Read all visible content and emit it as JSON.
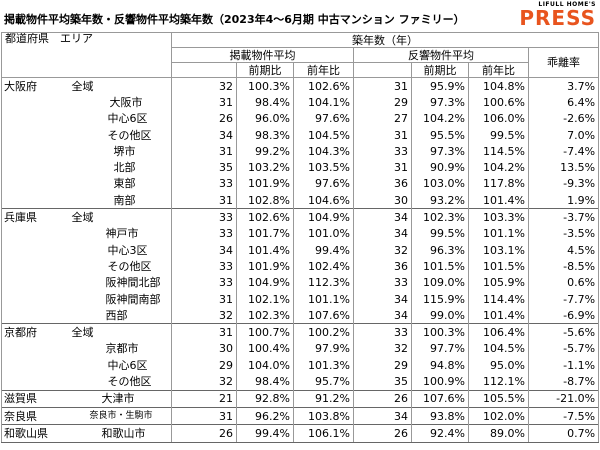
{
  "header": {
    "title": "掲載物件平均築年数・反響物件平均築年数（2023年4～6月期 中古マンション ファミリー）",
    "logo_small": "LIFULL HOME'S",
    "logo_large": "PRESS"
  },
  "table": {
    "columns": {
      "region": "都道府県　エリア",
      "years": "築年数（年）",
      "listed": "掲載物件平均",
      "inquired": "反響物件平均",
      "gap": "乖離率",
      "listed_qoq": "前期比",
      "listed_yoy": "前年比",
      "inquired_qoq": "前期比",
      "inquired_yoy": "前年比"
    },
    "rows": [
      {
        "prefecture": "大阪府",
        "area": "全域",
        "cells": [
          "32",
          "100.3%",
          "102.6%",
          "31",
          "95.9%",
          "104.8%",
          "3.7%"
        ]
      },
      {
        "area": "大阪市",
        "cells": [
          "31",
          "98.4%",
          "104.1%",
          "29",
          "97.3%",
          "100.6%",
          "6.4%"
        ]
      },
      {
        "area": "中心6区",
        "cells": [
          "26",
          "96.0%",
          "97.6%",
          "27",
          "104.2%",
          "106.0%",
          "-2.6%"
        ]
      },
      {
        "area": "その他区",
        "cells": [
          "34",
          "98.3%",
          "104.5%",
          "31",
          "95.5%",
          "99.5%",
          "7.0%"
        ]
      },
      {
        "area": "堺市",
        "cells": [
          "31",
          "99.2%",
          "104.3%",
          "33",
          "97.3%",
          "114.5%",
          "-7.4%"
        ]
      },
      {
        "area": "北部",
        "cells": [
          "35",
          "103.2%",
          "103.5%",
          "31",
          "90.9%",
          "104.2%",
          "13.5%"
        ]
      },
      {
        "area": "東部",
        "cells": [
          "33",
          "101.9%",
          "97.6%",
          "36",
          "103.0%",
          "117.8%",
          "-9.3%"
        ]
      },
      {
        "area": "南部",
        "cells": [
          "31",
          "102.8%",
          "104.6%",
          "30",
          "93.2%",
          "101.4%",
          "1.9%"
        ]
      },
      {
        "prefecture": "兵庫県",
        "area": "全域",
        "cells": [
          "33",
          "102.6%",
          "104.9%",
          "34",
          "102.3%",
          "103.3%",
          "-3.7%"
        ]
      },
      {
        "area": "神戸市",
        "cells": [
          "33",
          "101.7%",
          "101.0%",
          "34",
          "99.5%",
          "101.1%",
          "-3.5%"
        ]
      },
      {
        "area": "中心3区",
        "cells": [
          "34",
          "101.4%",
          "99.4%",
          "32",
          "96.3%",
          "103.1%",
          "4.5%"
        ]
      },
      {
        "area": "その他区",
        "cells": [
          "33",
          "101.9%",
          "102.4%",
          "36",
          "101.5%",
          "101.5%",
          "-8.5%"
        ]
      },
      {
        "area": "阪神間北部",
        "cells": [
          "33",
          "104.9%",
          "112.3%",
          "33",
          "109.0%",
          "105.9%",
          "0.6%"
        ]
      },
      {
        "area": "阪神間南部",
        "cells": [
          "31",
          "102.1%",
          "101.1%",
          "34",
          "115.9%",
          "114.4%",
          "-7.7%"
        ]
      },
      {
        "area": "西部",
        "cells": [
          "32",
          "102.3%",
          "107.6%",
          "34",
          "99.0%",
          "101.4%",
          "-6.9%"
        ]
      },
      {
        "prefecture": "京都府",
        "area": "全域",
        "cells": [
          "31",
          "100.7%",
          "100.2%",
          "33",
          "100.3%",
          "106.4%",
          "-5.6%"
        ]
      },
      {
        "area": "京都市",
        "cells": [
          "30",
          "100.4%",
          "97.9%",
          "32",
          "97.7%",
          "104.5%",
          "-5.7%"
        ]
      },
      {
        "area": "中心6区",
        "cells": [
          "29",
          "104.0%",
          "101.3%",
          "29",
          "94.8%",
          "95.0%",
          "-1.1%"
        ]
      },
      {
        "area": "その他区",
        "cells": [
          "32",
          "98.4%",
          "95.7%",
          "35",
          "100.9%",
          "112.1%",
          "-8.7%"
        ]
      },
      {
        "prefecture": "滋賀県",
        "area": "大津市",
        "cells": [
          "21",
          "92.8%",
          "91.2%",
          "26",
          "107.6%",
          "105.5%",
          "-21.0%"
        ]
      },
      {
        "prefecture": "奈良県",
        "area": "奈良市・生駒市",
        "cells": [
          "31",
          "96.2%",
          "103.8%",
          "34",
          "93.8%",
          "102.0%",
          "-7.5%"
        ]
      },
      {
        "prefecture": "和歌山県",
        "area": "和歌山市",
        "cells": [
          "26",
          "99.4%",
          "106.1%",
          "26",
          "92.4%",
          "89.0%",
          "0.7%"
        ]
      }
    ]
  }
}
